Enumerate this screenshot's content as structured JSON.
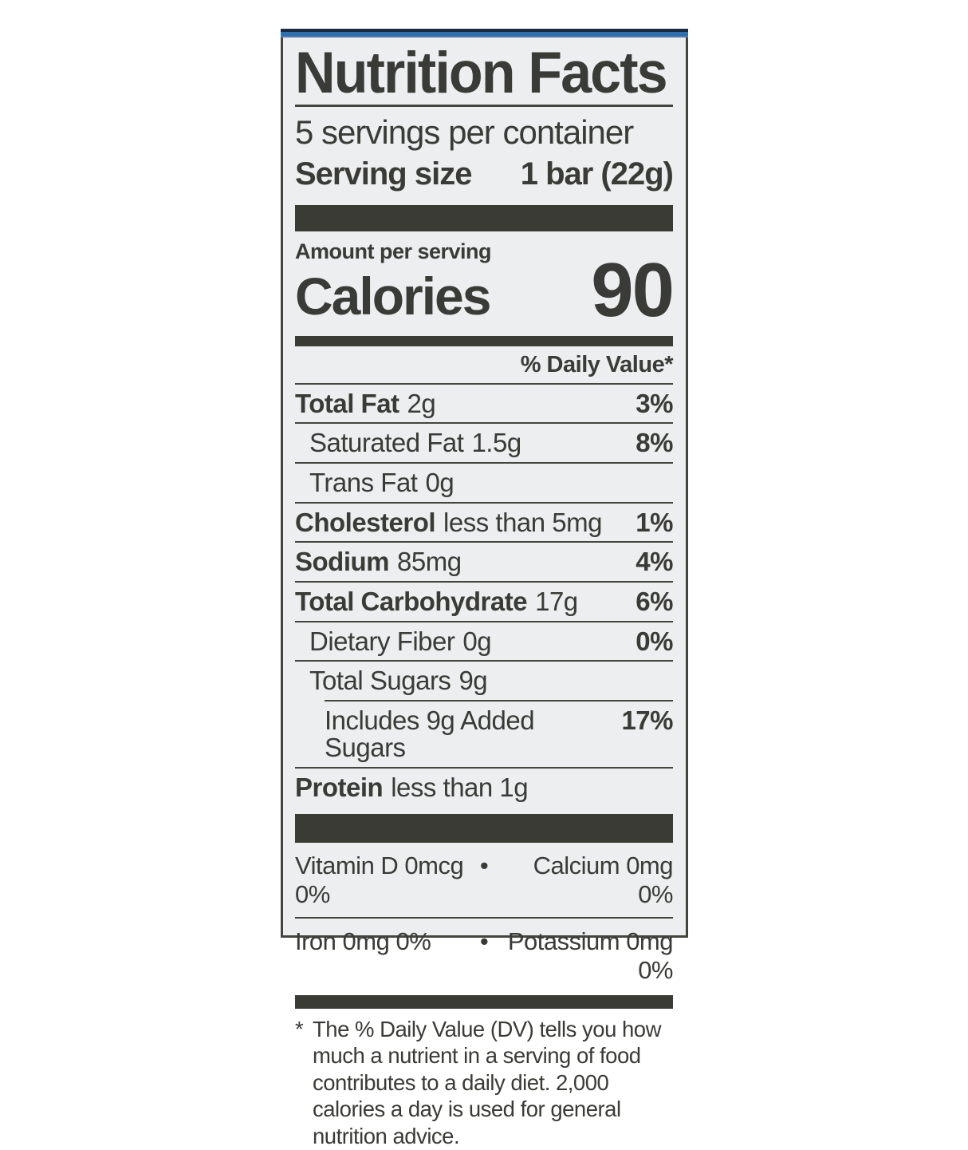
{
  "label": {
    "title": "Nutrition Facts",
    "servings_per_container": "5 servings per container",
    "serving_size_label": "Serving size",
    "serving_size_value": "1 bar (22g)",
    "amount_per_serving": "Amount per serving",
    "calories_label": "Calories",
    "calories_value": "90",
    "daily_value_header": "% Daily Value*",
    "nutrients": [
      {
        "name": "Total Fat",
        "amount": "2g",
        "dv": "3%"
      },
      {
        "name": "Saturated Fat",
        "amount": "1.5g",
        "dv": "8%"
      },
      {
        "name": "Trans Fat",
        "amount": "0g",
        "dv": ""
      },
      {
        "name": "Cholesterol",
        "amount": "less than 5mg",
        "dv": "1%"
      },
      {
        "name": "Sodium",
        "amount": "85mg",
        "dv": "4%"
      },
      {
        "name": "Total Carbohydrate",
        "amount": "17g",
        "dv": "6%"
      },
      {
        "name": "Dietary Fiber",
        "amount": "0g",
        "dv": "0%"
      },
      {
        "name": "Total Sugars",
        "amount": "9g",
        "dv": ""
      },
      {
        "name": "Includes 9g Added Sugars",
        "amount": "",
        "dv": "17%"
      },
      {
        "name": "Protein",
        "amount": "less than 1g",
        "dv": ""
      }
    ],
    "micronutrients": [
      {
        "left": "Vitamin D  0mcg  0%",
        "right": "Calcium  0mg  0%"
      },
      {
        "left": "Iron  0mg  0%",
        "right": "Potassium  0mg  0%"
      }
    ],
    "bullet": "•",
    "footnote_marker": "*",
    "footnote": "The % Daily Value (DV) tells you how much a nutrient in a serving of food contributes to a daily diet. 2,000 calories a day is used for general nutrition advice."
  },
  "colors": {
    "label_background": "#eceef0",
    "ink": "#3a3a36",
    "separator_bar": "#3b3b36",
    "accent_blue_strip": "#2e6fad"
  }
}
